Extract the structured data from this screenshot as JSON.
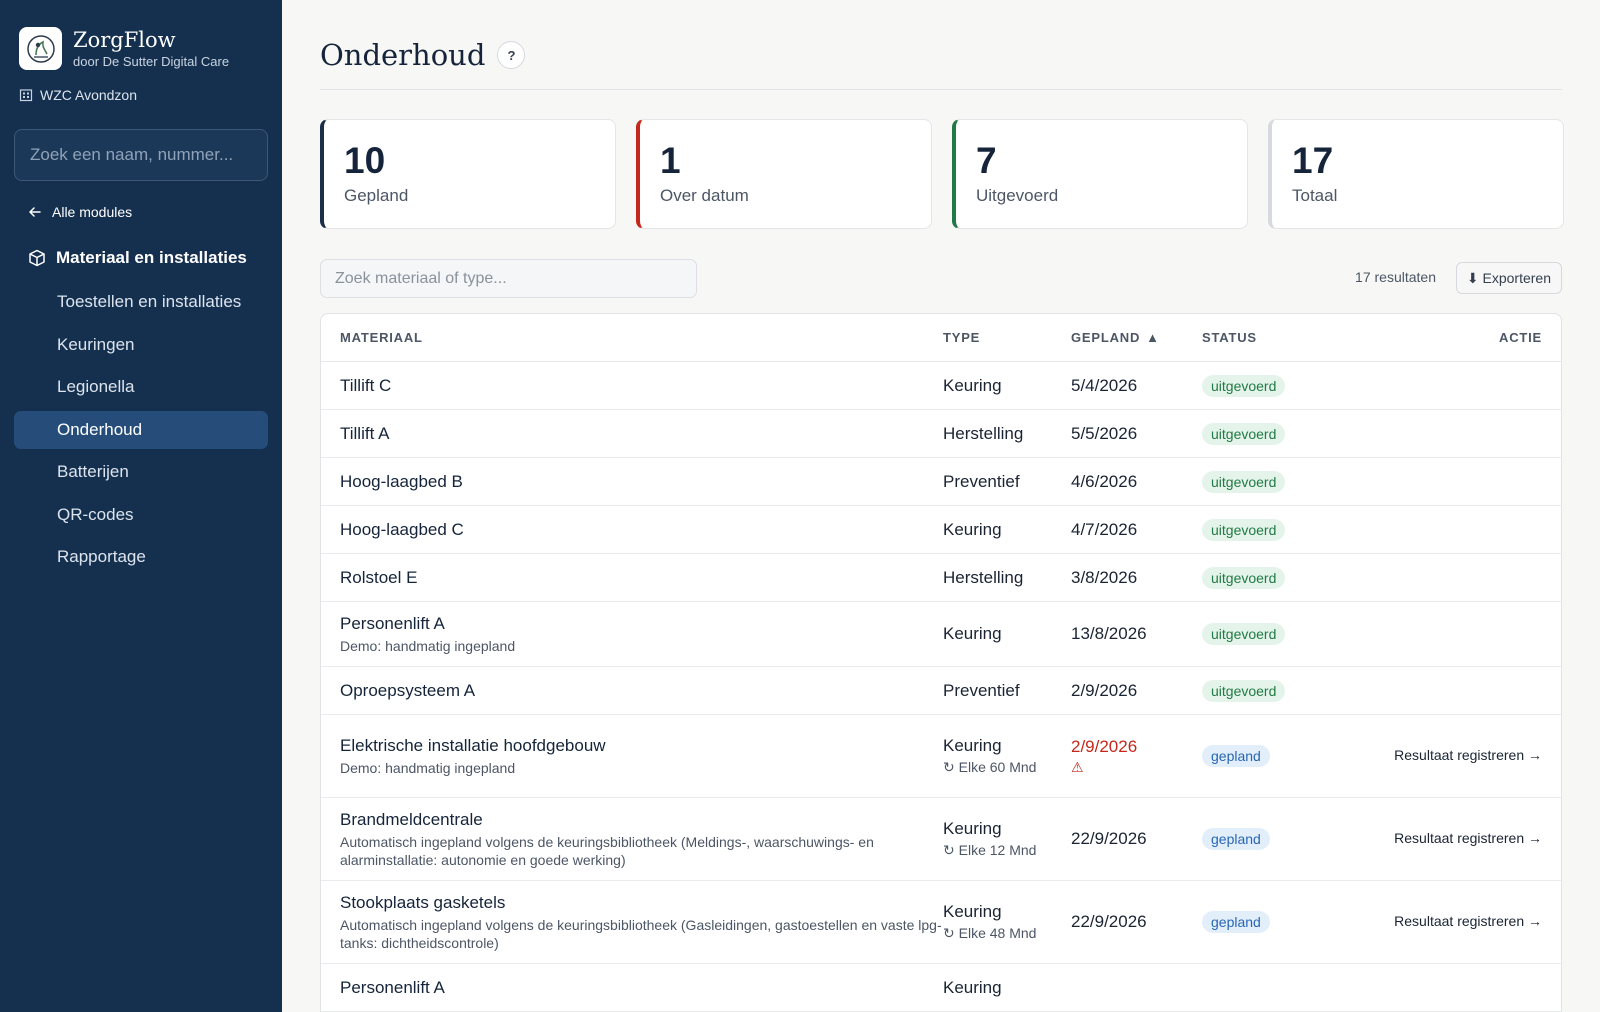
{
  "sidebar": {
    "app_name": "ZorgFlow",
    "app_subtitle": "door De Sutter Digital Care",
    "organization": "WZC Avondzon",
    "search_placeholder": "Zoek een naam, nummer...",
    "back_label": "Alle modules",
    "module_title": "Materiaal en installaties",
    "items": [
      {
        "label": "Toestellen en installaties"
      },
      {
        "label": "Keuringen"
      },
      {
        "label": "Legionella"
      },
      {
        "label": "Onderhoud",
        "active": true
      },
      {
        "label": "Batterijen"
      },
      {
        "label": "QR-codes"
      },
      {
        "label": "Rapportage"
      }
    ]
  },
  "header": {
    "title": "Onderhoud",
    "help_label": "?"
  },
  "stats": [
    {
      "value": "10",
      "label": "Gepland",
      "color": "#1c2f4a"
    },
    {
      "value": "1",
      "label": "Over datum",
      "color": "#c4281c"
    },
    {
      "value": "7",
      "label": "Uitgevoerd",
      "color": "#217a45"
    },
    {
      "value": "17",
      "label": "Totaal",
      "color": "#d6d9dd"
    }
  ],
  "toolbar": {
    "search_placeholder": "Zoek materiaal of type...",
    "results_label": "17 resultaten",
    "export_label": "⬇ Exporteren"
  },
  "table": {
    "columns": {
      "material": "MATERIAAL",
      "type": "TYPE",
      "planned": "GEPLAND",
      "sort_arrow": "▲",
      "status": "STATUS",
      "action": "ACTIE"
    },
    "rows": [
      {
        "material": "Tillift C",
        "type": "Keuring",
        "date": "5/4/2026",
        "status": "uitgevoerd"
      },
      {
        "material": "Tillift A",
        "type": "Herstelling",
        "date": "5/5/2026",
        "status": "uitgevoerd"
      },
      {
        "material": "Hoog-laagbed B",
        "type": "Preventief",
        "date": "4/6/2026",
        "status": "uitgevoerd"
      },
      {
        "material": "Hoog-laagbed C",
        "type": "Keuring",
        "date": "4/7/2026",
        "status": "uitgevoerd"
      },
      {
        "material": "Rolstoel E",
        "type": "Herstelling",
        "date": "3/8/2026",
        "status": "uitgevoerd"
      },
      {
        "material": "Personenlift A",
        "subtitle": "Demo: handmatig ingepland",
        "type": "Keuring",
        "date": "13/8/2026",
        "status": "uitgevoerd"
      },
      {
        "material": "Oproepsysteem A",
        "type": "Preventief",
        "date": "2/9/2026",
        "status": "uitgevoerd"
      },
      {
        "material": "Elektrische installatie hoofdgebouw",
        "subtitle": "Demo: handmatig ingepland",
        "type": "Keuring",
        "recurrence": "↻ Elke 60 Mnd",
        "date": "2/9/2026",
        "overdue": true,
        "warning": "⚠",
        "status": "gepland",
        "action": "Resultaat registreren →"
      },
      {
        "material": "Brandmeldcentrale",
        "subtitle": "Automatisch ingepland volgens de keuringsbibliotheek (Meldings-, waarschuwings- en alarminstallatie: autonomie en goede werking)",
        "type": "Keuring",
        "recurrence": "↻ Elke 12 Mnd",
        "date": "22/9/2026",
        "status": "gepland",
        "action": "Resultaat registreren →"
      },
      {
        "material": "Stookplaats gasketels",
        "subtitle": "Automatisch ingepland volgens de keuringsbibliotheek (Gasleidingen, gastoestellen en vaste lpg-tanks: dichtheidscontrole)",
        "type": "Keuring",
        "recurrence": "↻ Elke 48 Mnd",
        "date": "22/9/2026",
        "status": "gepland",
        "action": "Resultaat registreren →"
      },
      {
        "material": "Personenlift A",
        "type": "Keuring",
        "date": "",
        "status": ""
      }
    ]
  }
}
